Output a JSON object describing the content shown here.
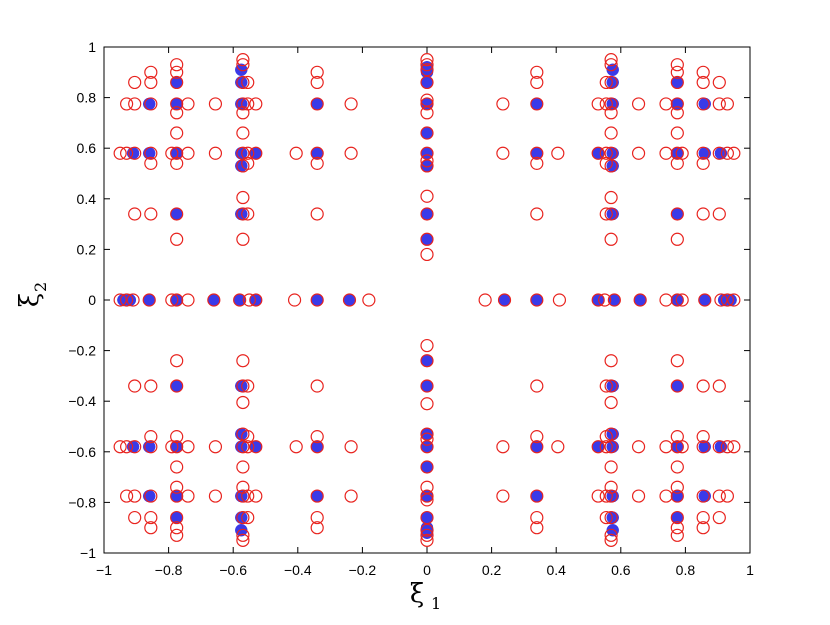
{
  "chart_data": {
    "type": "scatter",
    "xlabel": "ξ",
    "xlabel_sub": "1",
    "ylabel": "ξ",
    "ylabel_sub": "2",
    "xlim": [
      -1,
      1
    ],
    "ylim": [
      -1,
      1
    ],
    "x_ticks": [
      "−1",
      "−0.8",
      "−0.6",
      "−0.4",
      "−0.2",
      "0",
      "0.2",
      "0.4",
      "0.6",
      "0.8",
      "1"
    ],
    "x_tick_values": [
      -1,
      -0.8,
      -0.6,
      -0.4,
      -0.2,
      0,
      0.2,
      0.4,
      0.6,
      0.8,
      1
    ],
    "y_ticks": [
      "−1",
      "−0.8",
      "−0.6",
      "−0.4",
      "−0.2",
      "0",
      "0.2",
      "0.4",
      "0.6",
      "0.8",
      "1"
    ],
    "y_tick_values": [
      -1,
      -0.8,
      -0.6,
      -0.4,
      -0.2,
      0,
      0.2,
      0.4,
      0.6,
      0.8,
      1
    ],
    "grid": false,
    "symmetry": "fourfold (±x, ±y, and x=0 / y=0 axes)",
    "series": [
      {
        "marker": "filled-circle",
        "color": "#3a3ae8",
        "axis_x_values_positive": [
          0.24,
          0.34,
          0.53,
          0.58,
          0.66,
          0.775,
          0.86,
          0.92,
          0.94
        ],
        "axis_y_values_positive": [
          0.24,
          0.34,
          0.53,
          0.58,
          0.66,
          0.775,
          0.86,
          0.9,
          0.92
        ],
        "quadrant_points": [
          [
            0.34,
            0.58
          ],
          [
            0.34,
            0.775
          ],
          [
            0.53,
            0.58
          ],
          [
            0.575,
            0.34
          ],
          [
            0.575,
            0.53
          ],
          [
            0.575,
            0.58
          ],
          [
            0.575,
            0.775
          ],
          [
            0.575,
            0.86
          ],
          [
            0.575,
            0.91
          ],
          [
            0.775,
            0.34
          ],
          [
            0.775,
            0.58
          ],
          [
            0.775,
            0.775
          ],
          [
            0.775,
            0.86
          ],
          [
            0.86,
            0.58
          ],
          [
            0.86,
            0.775
          ],
          [
            0.91,
            0.58
          ]
        ]
      },
      {
        "marker": "open-circle",
        "color": "#e8231e",
        "axis_x_values_positive": [
          0.18,
          0.24,
          0.34,
          0.41,
          0.53,
          0.55,
          0.58,
          0.66,
          0.74,
          0.775,
          0.79,
          0.86,
          0.91,
          0.93,
          0.95
        ],
        "axis_y_values_positive": [
          0.18,
          0.24,
          0.34,
          0.41,
          0.53,
          0.55,
          0.58,
          0.66,
          0.74,
          0.775,
          0.79,
          0.86,
          0.91,
          0.93,
          0.95
        ],
        "quadrant_points": [
          [
            0.235,
            0.58
          ],
          [
            0.235,
            0.775
          ],
          [
            0.34,
            0.34
          ],
          [
            0.34,
            0.54
          ],
          [
            0.34,
            0.58
          ],
          [
            0.34,
            0.775
          ],
          [
            0.34,
            0.86
          ],
          [
            0.34,
            0.9
          ],
          [
            0.405,
            0.58
          ],
          [
            0.53,
            0.58
          ],
          [
            0.53,
            0.775
          ],
          [
            0.555,
            0.34
          ],
          [
            0.555,
            0.54
          ],
          [
            0.555,
            0.58
          ],
          [
            0.555,
            0.775
          ],
          [
            0.555,
            0.86
          ],
          [
            0.57,
            0.24
          ],
          [
            0.57,
            0.34
          ],
          [
            0.57,
            0.405
          ],
          [
            0.57,
            0.53
          ],
          [
            0.57,
            0.58
          ],
          [
            0.57,
            0.66
          ],
          [
            0.57,
            0.74
          ],
          [
            0.57,
            0.775
          ],
          [
            0.57,
            0.86
          ],
          [
            0.57,
            0.93
          ],
          [
            0.57,
            0.95
          ],
          [
            0.655,
            0.58
          ],
          [
            0.655,
            0.775
          ],
          [
            0.74,
            0.58
          ],
          [
            0.74,
            0.775
          ],
          [
            0.775,
            0.24
          ],
          [
            0.775,
            0.34
          ],
          [
            0.775,
            0.54
          ],
          [
            0.775,
            0.58
          ],
          [
            0.775,
            0.66
          ],
          [
            0.775,
            0.74
          ],
          [
            0.775,
            0.775
          ],
          [
            0.775,
            0.86
          ],
          [
            0.775,
            0.9
          ],
          [
            0.775,
            0.93
          ],
          [
            0.79,
            0.58
          ],
          [
            0.855,
            0.34
          ],
          [
            0.855,
            0.54
          ],
          [
            0.855,
            0.58
          ],
          [
            0.855,
            0.775
          ],
          [
            0.855,
            0.86
          ],
          [
            0.855,
            0.9
          ],
          [
            0.905,
            0.34
          ],
          [
            0.905,
            0.58
          ],
          [
            0.905,
            0.775
          ],
          [
            0.905,
            0.86
          ],
          [
            0.93,
            0.58
          ],
          [
            0.93,
            0.775
          ],
          [
            0.95,
            0.58
          ]
        ]
      }
    ]
  }
}
